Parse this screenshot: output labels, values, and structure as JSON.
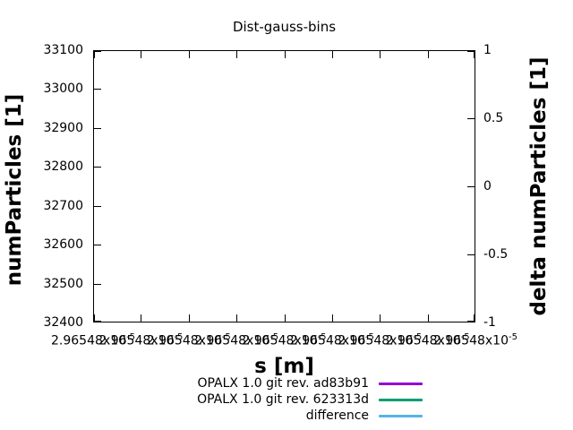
{
  "chart": {
    "title": "Dist-gauss-bins",
    "left_axis": {
      "label": "numParticles [1]",
      "ticks": [
        "33100",
        "33000",
        "32900",
        "32800",
        "32700",
        "32600",
        "32500",
        "32400"
      ]
    },
    "right_axis": {
      "label": "delta numParticles [1]",
      "ticks": [
        "1",
        "0.5",
        "0",
        "-0.5",
        "-1"
      ]
    },
    "x_axis": {
      "label": "s [m]",
      "tick_count": 9,
      "tick_label_mantissa": "2.96548",
      "tick_label_base": "x10",
      "tick_label_exponent": "-5"
    }
  },
  "chart_data": {
    "type": "line",
    "title": "Dist-gauss-bins",
    "xlabel": "s [m]",
    "ylabel": "numParticles [1]",
    "y2label": "delta numParticles [1]",
    "ylim": [
      32400,
      33100
    ],
    "y_tick_step": 100,
    "y2lim": [
      -1,
      1
    ],
    "y2_tick_step": 0.5,
    "x_tick_value": "2.96548e-05",
    "x_tick_count": 9,
    "grid": false,
    "legend_position": "below",
    "series": [
      {
        "name": "OPALX 1.0 git rev. ad83b91",
        "color": "#9400d3",
        "values": []
      },
      {
        "name": "OPALX 1.0 git rev. 623313d",
        "color": "#009e73",
        "values": []
      },
      {
        "name": "difference",
        "color": "#56b4e9",
        "values": []
      }
    ],
    "visible_points_note": "plot area is empty; all curves collapse outside the visible range"
  }
}
